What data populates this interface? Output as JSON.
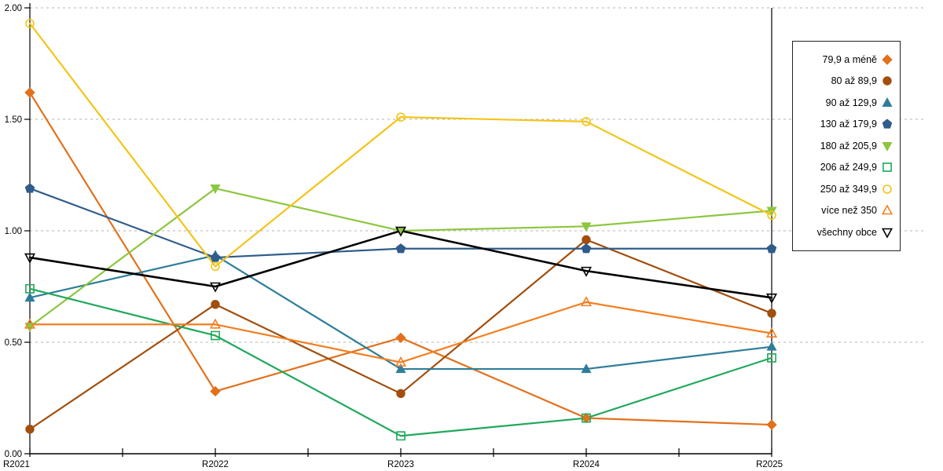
{
  "chart_data": {
    "type": "line",
    "title": "",
    "xlabel": "",
    "ylabel": "",
    "x_categories": [
      "R2021",
      "R2022",
      "R2023",
      "R2024",
      "R2025"
    ],
    "ylim": [
      0,
      2
    ],
    "y_tick_labels": [
      "0.00",
      "0.50",
      "1.00",
      "1.50",
      "2.00"
    ],
    "grid": "horizontal-dashed",
    "legend_position": "right-outside-boxed",
    "grid_color": "#b3b3b3",
    "axis_color": "#000000",
    "series": [
      {
        "name": "79,9 a méně",
        "marker": "diamond-filled",
        "color": "#E2711D",
        "values": [
          1.62,
          0.28,
          0.52,
          0.16,
          0.13
        ]
      },
      {
        "name": "80 až 89,9",
        "marker": "circle-filled",
        "color": "#A24E0C",
        "values": [
          0.11,
          0.67,
          0.27,
          0.96,
          0.63
        ]
      },
      {
        "name": "90 až 129,9",
        "marker": "triangle-up-filled",
        "color": "#2E7E99",
        "values": [
          0.7,
          0.89,
          0.38,
          0.38,
          0.48
        ]
      },
      {
        "name": "130 až 179,9",
        "marker": "pentagon-filled",
        "color": "#2F5C8A",
        "values": [
          1.19,
          0.88,
          0.92,
          0.92,
          0.92
        ]
      },
      {
        "name": "180 až 205,9",
        "marker": "triangle-down-filled",
        "color": "#8DC63F",
        "values": [
          0.57,
          1.19,
          1.0,
          1.02,
          1.09
        ]
      },
      {
        "name": "206 až 249,9",
        "marker": "square-open",
        "color": "#21A85C",
        "values": [
          0.74,
          0.53,
          0.08,
          0.16,
          0.43
        ]
      },
      {
        "name": "250 až 349,9",
        "marker": "circle-open",
        "color": "#F4C418",
        "values": [
          1.93,
          0.84,
          1.51,
          1.49,
          1.07
        ]
      },
      {
        "name": "více než 350",
        "marker": "triangle-up-open",
        "color": "#F47E20",
        "values": [
          0.58,
          0.58,
          0.41,
          0.68,
          0.54
        ]
      },
      {
        "name": "všechny obce",
        "marker": "triangle-down-open",
        "color": "#000000",
        "values": [
          0.88,
          0.75,
          1.0,
          0.82,
          0.7
        ]
      }
    ]
  }
}
